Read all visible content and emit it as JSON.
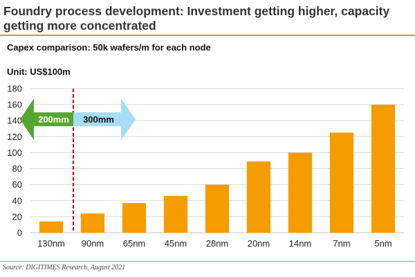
{
  "header": {
    "title": "Foundry process development: Investment getting higher, capacity getting more concentrated"
  },
  "chart_data": {
    "type": "bar",
    "title": "Capex comparison: 50k wafers/m for each node",
    "unit_label": "Unit: US$100m",
    "categories": [
      "130nm",
      "90nm",
      "65nm",
      "45nm",
      "28nm",
      "20nm",
      "14nm",
      "7nm",
      "5nm"
    ],
    "values": [
      14,
      24,
      37,
      46,
      60,
      89,
      100,
      125,
      160
    ],
    "ylim": [
      0,
      180
    ],
    "yticks": [
      0,
      20,
      40,
      60,
      80,
      100,
      120,
      140,
      160,
      180
    ],
    "grid": true,
    "xlabel": "",
    "ylabel": "",
    "divider_between": [
      "130nm",
      "90nm"
    ],
    "annotations": {
      "left_arrow_label": "200mm",
      "right_arrow_label": "300mm"
    },
    "colors": {
      "bar": "#f59c00",
      "grid": "#d9d9d9",
      "divider": "#c00000",
      "left_arrow": "#55a630",
      "right_arrow": "#a6dcf4"
    }
  },
  "footer": {
    "source": "Source: DIGITIMES Research, August 2021"
  },
  "colors": {
    "accent_rule": "#f29100"
  }
}
